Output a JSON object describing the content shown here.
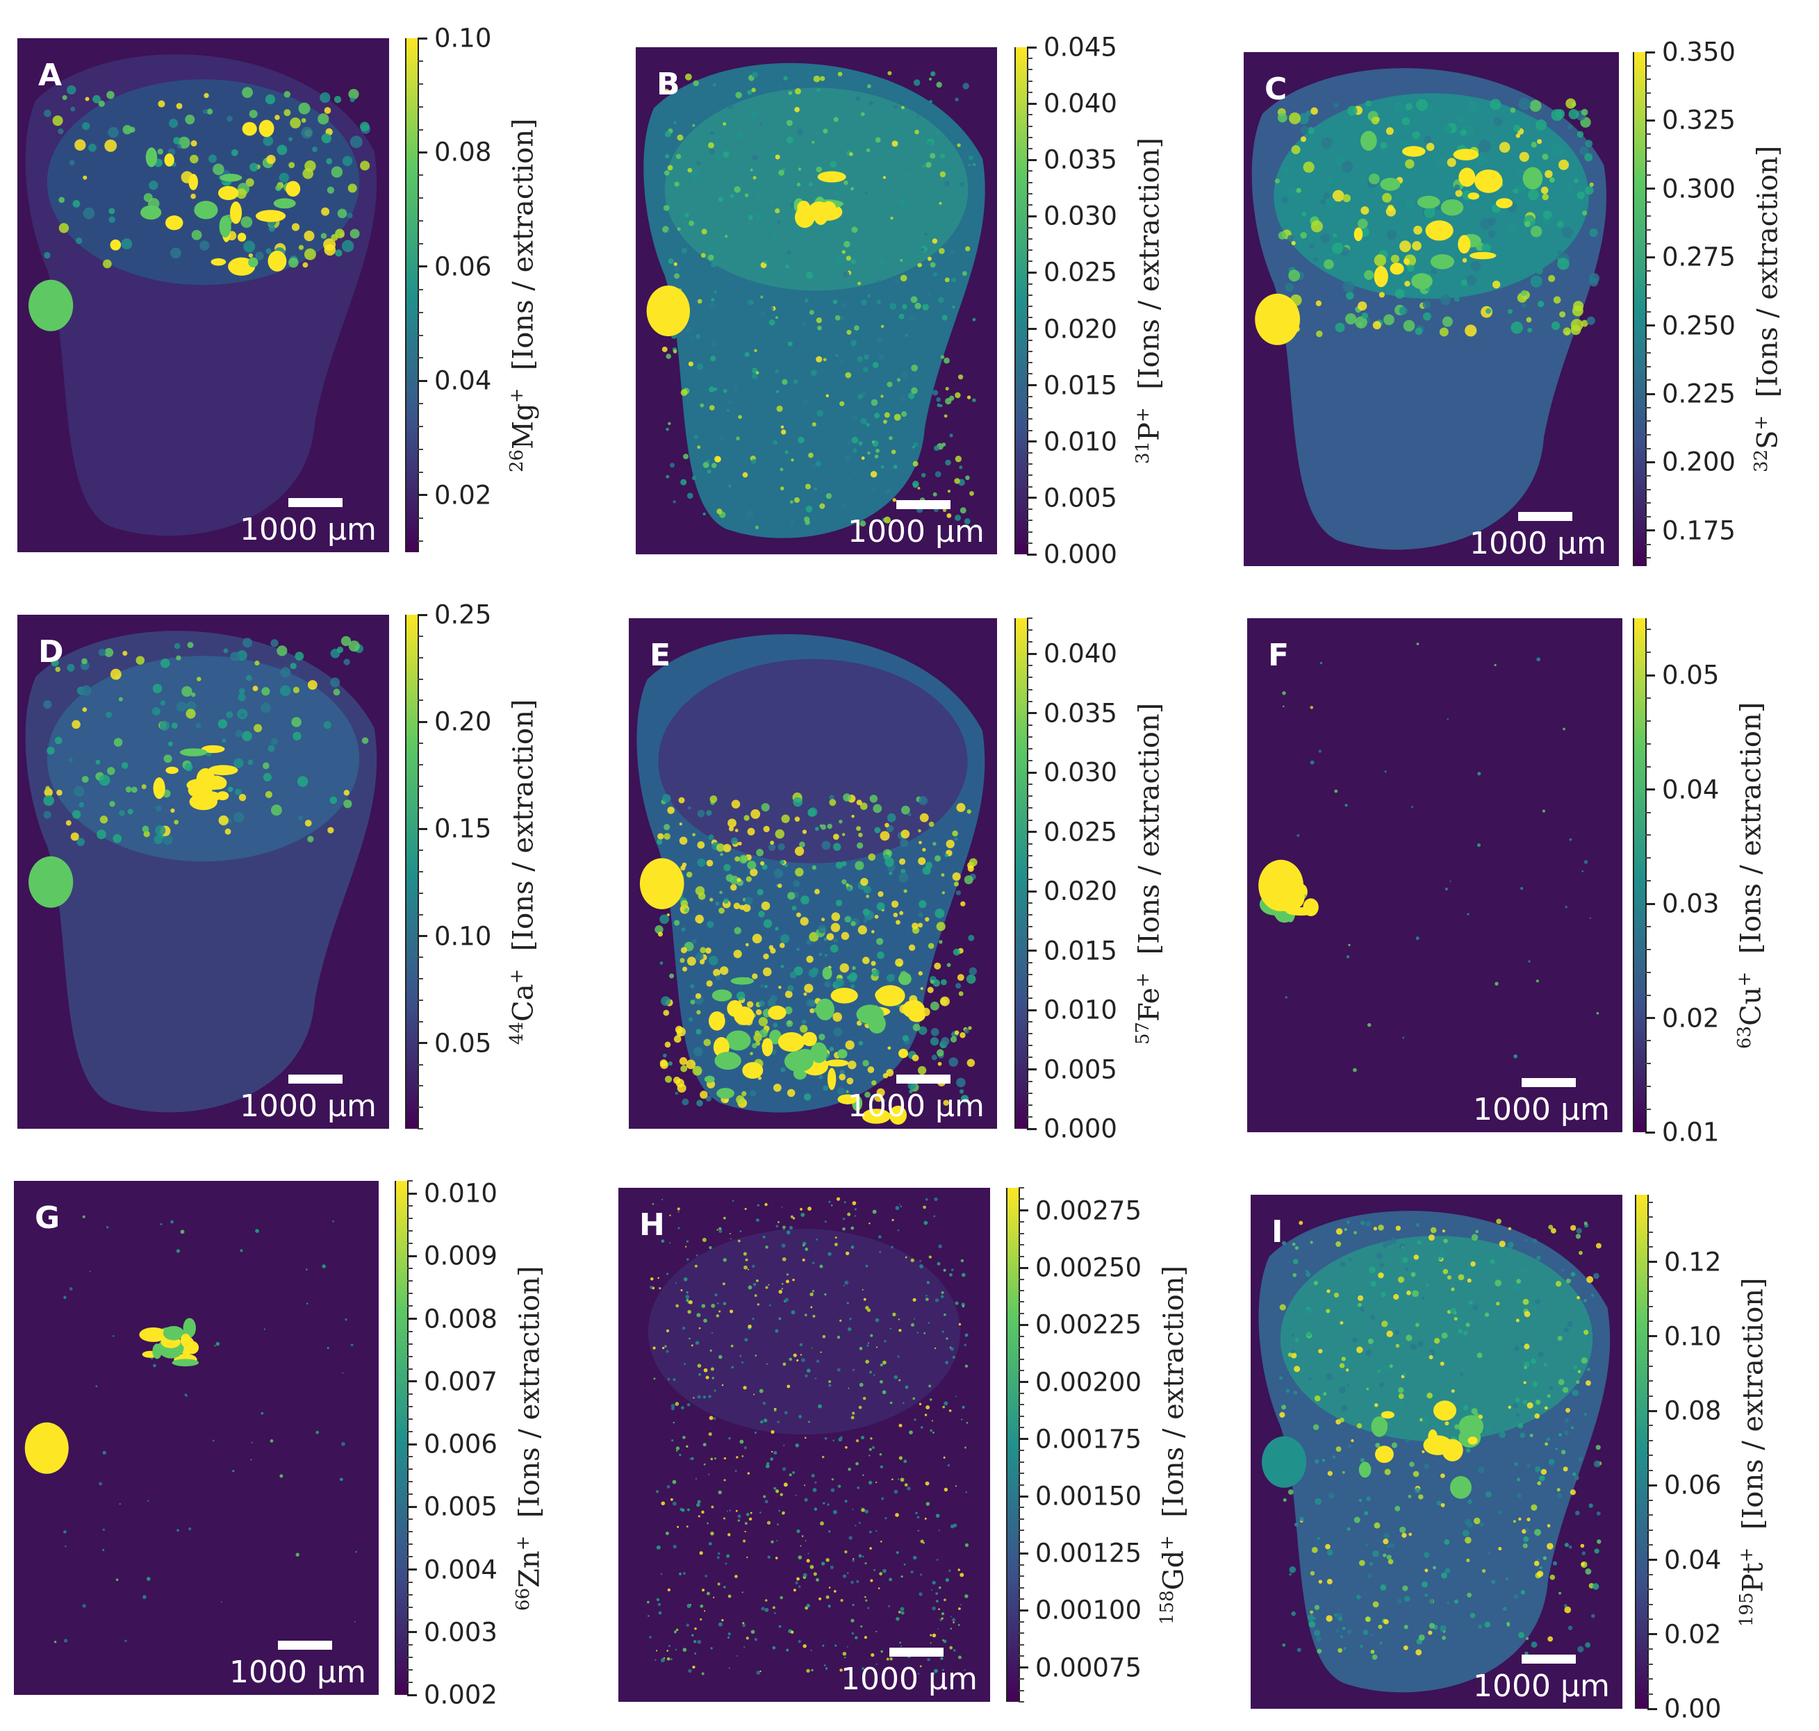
{
  "scale_bar_label": "1000 µm",
  "colormap": "viridis",
  "colormap_stops": [
    "#440154",
    "#3b528b",
    "#21918c",
    "#5ec962",
    "#fde725"
  ],
  "chart_data": [
    {
      "type": "heatmap",
      "panel": "A",
      "isotope_mass": "26",
      "element": "Mg",
      "charge": "+",
      "unit": "[Ions / extraction]",
      "colorbar_ticks": [
        "0.02",
        "0.04",
        "0.06",
        "0.08",
        "0.10"
      ],
      "colorbar_range": [
        0.01,
        0.1
      ]
    },
    {
      "type": "heatmap",
      "panel": "B",
      "isotope_mass": "31",
      "element": "P",
      "charge": "+",
      "unit": "[Ions / extraction]",
      "colorbar_ticks": [
        "0.000",
        "0.005",
        "0.010",
        "0.015",
        "0.020",
        "0.025",
        "0.030",
        "0.035",
        "0.040",
        "0.045"
      ],
      "colorbar_range": [
        0.0,
        0.045
      ]
    },
    {
      "type": "heatmap",
      "panel": "C",
      "isotope_mass": "32",
      "element": "S",
      "charge": "+",
      "unit": "[Ions / extraction]",
      "colorbar_ticks": [
        "0.175",
        "0.200",
        "0.225",
        "0.250",
        "0.275",
        "0.300",
        "0.325",
        "0.350"
      ],
      "colorbar_range": [
        0.162,
        0.35
      ]
    },
    {
      "type": "heatmap",
      "panel": "D",
      "isotope_mass": "44",
      "element": "Ca",
      "charge": "+",
      "unit": "[Ions / extraction]",
      "colorbar_ticks": [
        "0.05",
        "0.10",
        "0.15",
        "0.20",
        "0.25"
      ],
      "colorbar_range": [
        0.01,
        0.25
      ]
    },
    {
      "type": "heatmap",
      "panel": "E",
      "isotope_mass": "57",
      "element": "Fe",
      "charge": "+",
      "unit": "[Ions / extraction]",
      "colorbar_ticks": [
        "0.000",
        "0.005",
        "0.010",
        "0.015",
        "0.020",
        "0.025",
        "0.030",
        "0.035",
        "0.040"
      ],
      "colorbar_range": [
        0.0,
        0.043
      ]
    },
    {
      "type": "heatmap",
      "panel": "F",
      "isotope_mass": "63",
      "element": "Cu",
      "charge": "+",
      "unit": "[Ions / extraction]",
      "colorbar_ticks": [
        "0.01",
        "0.02",
        "0.03",
        "0.04",
        "0.05"
      ],
      "colorbar_range": [
        0.01,
        0.055
      ]
    },
    {
      "type": "heatmap",
      "panel": "G",
      "isotope_mass": "66",
      "element": "Zn",
      "charge": "+",
      "unit": "[Ions / extraction]",
      "colorbar_ticks": [
        "0.002",
        "0.003",
        "0.004",
        "0.005",
        "0.006",
        "0.007",
        "0.008",
        "0.009",
        "0.010"
      ],
      "colorbar_range": [
        0.002,
        0.0102
      ]
    },
    {
      "type": "heatmap",
      "panel": "H",
      "isotope_mass": "158",
      "element": "Gd",
      "charge": "+",
      "unit": "[Ions / extraction]",
      "colorbar_ticks": [
        "0.00075",
        "0.00100",
        "0.00125",
        "0.00150",
        "0.00175",
        "0.00200",
        "0.00225",
        "0.00250",
        "0.00275"
      ],
      "colorbar_range": [
        0.0006,
        0.00285
      ]
    },
    {
      "type": "heatmap",
      "panel": "I",
      "isotope_mass": "195",
      "element": "Pt",
      "charge": "+",
      "unit": "[Ions / extraction]",
      "colorbar_ticks": [
        "0.00",
        "0.02",
        "0.04",
        "0.06",
        "0.08",
        "0.10",
        "0.12"
      ],
      "colorbar_range": [
        0.0,
        0.138
      ]
    }
  ]
}
